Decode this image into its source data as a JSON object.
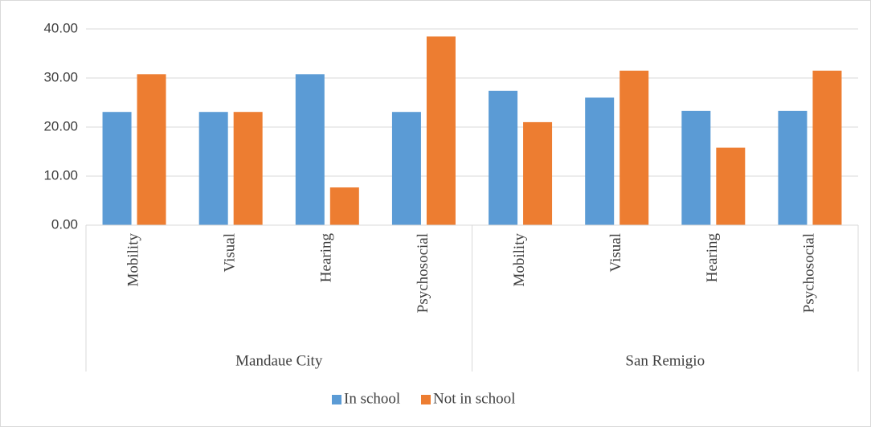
{
  "chart_data": {
    "type": "bar",
    "categories": [
      "Mobility",
      "Visual",
      "Hearing",
      "Psychosocial",
      "Mobility",
      "Visual",
      "Hearing",
      "Psychosocial"
    ],
    "category_groups": [
      "Mandaue City",
      "San Remigio"
    ],
    "series": [
      {
        "name": "In school",
        "color": "#5b9bd5",
        "values": [
          23.08,
          23.08,
          30.77,
          23.08,
          27.4,
          26.0,
          23.3,
          23.3
        ]
      },
      {
        "name": "Not in school",
        "color": "#ed7d31",
        "values": [
          30.77,
          23.08,
          7.69,
          38.46,
          21.0,
          31.5,
          15.8,
          31.5
        ]
      }
    ],
    "ylim": [
      0,
      40
    ],
    "yticks": [
      {
        "value": 0,
        "label": "0.00"
      },
      {
        "value": 10,
        "label": "10.00"
      },
      {
        "value": 20,
        "label": "20.00"
      },
      {
        "value": 30,
        "label": "30.00"
      },
      {
        "value": 40,
        "label": "40.00"
      }
    ],
    "grid": true,
    "legend": "bottom"
  }
}
